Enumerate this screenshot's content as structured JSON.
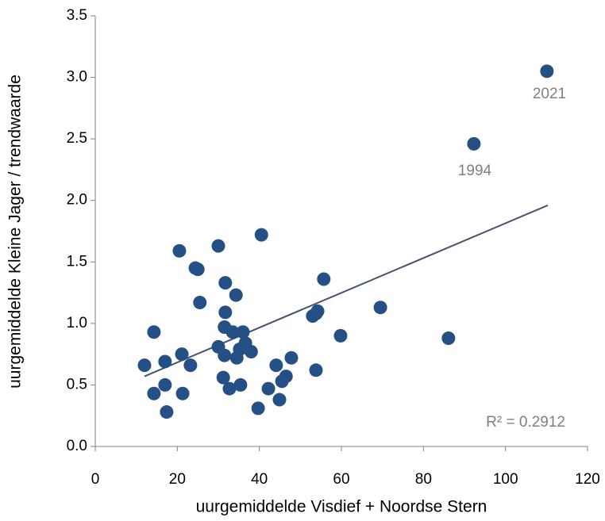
{
  "chart_data": {
    "type": "scatter",
    "x_label": "uurgemiddelde Visdief + Noordse Stern",
    "y_label": "uurgemiddelde Kleine Jager / trendwaarde",
    "x": [
      12.0,
      14.3,
      14.3,
      17.0,
      17.0,
      17.4,
      20.5,
      21.1,
      21.3,
      23.2,
      24.4,
      25.0,
      25.5,
      30.0,
      30.0,
      31.2,
      31.5,
      31.5,
      31.7,
      31.7,
      32.7,
      33.5,
      34.3,
      34.5,
      35.2,
      35.4,
      36.0,
      36.6,
      38.0,
      40.5,
      39.7,
      42.2,
      44.1,
      44.9,
      45.5,
      46.5,
      47.8,
      53.0,
      53.8,
      54.2,
      53.8,
      55.7,
      59.8,
      69.5,
      86.1,
      92.3,
      110.1
    ],
    "values": [
      0.66,
      0.93,
      0.43,
      0.69,
      0.5,
      0.28,
      1.59,
      0.75,
      0.43,
      0.66,
      1.45,
      1.44,
      1.17,
      1.63,
      0.81,
      0.56,
      0.74,
      0.97,
      1.09,
      1.33,
      0.47,
      0.93,
      1.23,
      0.72,
      0.79,
      0.5,
      0.93,
      0.84,
      0.77,
      1.72,
      0.31,
      0.47,
      0.66,
      0.38,
      0.53,
      0.57,
      0.72,
      1.06,
      1.08,
      1.1,
      0.62,
      1.36,
      0.9,
      1.13,
      0.88,
      2.46,
      3.05
    ],
    "color": "#255085",
    "trendline": {
      "x": [
        12.0,
        110.3
      ],
      "y": [
        0.57,
        1.96
      ],
      "color": "#44546a"
    },
    "annotations": [
      "2021",
      "1994",
      "R² = 0.2912"
    ],
    "xlim": [
      0,
      120
    ],
    "xticks": [
      0,
      20,
      40,
      60,
      80,
      100,
      120
    ],
    "ylim": [
      0,
      3.5
    ],
    "yticks": [
      {
        "value": 0,
        "label": "0.0"
      },
      0.5,
      {
        "value": 1,
        "label": "1.0"
      },
      1.5,
      {
        "value": 2,
        "label": "2.0"
      },
      2.5,
      {
        "value": 3,
        "label": "3.0"
      },
      3.5
    ],
    "grid": false
  }
}
